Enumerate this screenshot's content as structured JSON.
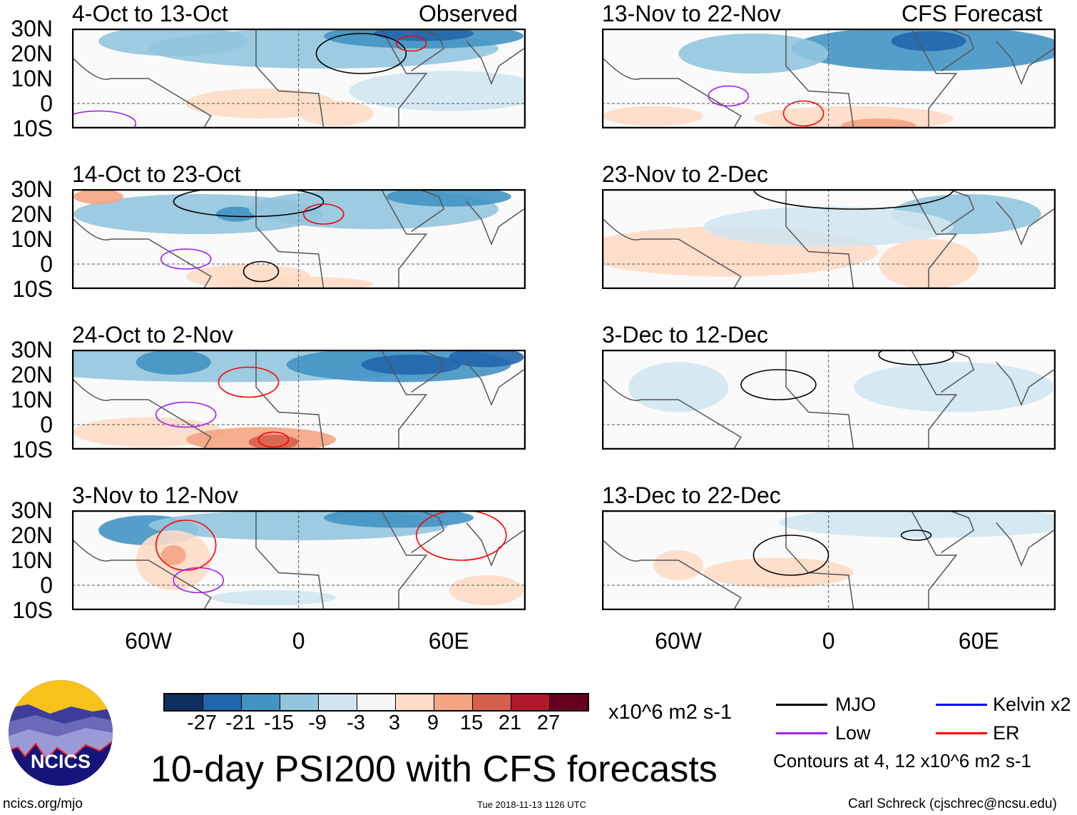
{
  "chart_data": {
    "type": "heatmap",
    "title": "10-day PSI200 with CFS forecasts",
    "units": "x10^6 m2 s-1",
    "lat_ticks": [
      "30N",
      "20N",
      "10N",
      "0",
      "10S"
    ],
    "lon_ticks": [
      "60W",
      "0",
      "60E"
    ],
    "lat_range": [
      -10,
      30
    ],
    "lon_range": [
      -90,
      90
    ],
    "column_headers": {
      "left": "Observed",
      "right": "CFS Forecast"
    },
    "panels": [
      {
        "label": "4-Oct to 13-Oct",
        "type": "Observed"
      },
      {
        "label": "14-Oct to 23-Oct",
        "type": "Observed"
      },
      {
        "label": "24-Oct to 2-Nov",
        "type": "Observed"
      },
      {
        "label": "3-Nov to 12-Nov",
        "type": "Observed"
      },
      {
        "label": "13-Nov to 22-Nov",
        "type": "CFS Forecast"
      },
      {
        "label": "23-Nov to 2-Dec",
        "type": "CFS Forecast"
      },
      {
        "label": "3-Dec to 12-Dec",
        "type": "CFS Forecast"
      },
      {
        "label": "13-Dec to 22-Dec",
        "type": "CFS Forecast"
      }
    ],
    "colorbar": {
      "labels": [
        "-27",
        "-21",
        "-15",
        "-9",
        "-3",
        "3",
        "9",
        "15",
        "21",
        "27"
      ],
      "colors": [
        "#0d2f5f",
        "#2166ac",
        "#4393c3",
        "#92c5de",
        "#d1e5f0",
        "#f7f7f7",
        "#fddbc7",
        "#f4a582",
        "#d6604d",
        "#b2182b",
        "#67001f"
      ]
    },
    "legend": [
      {
        "name": "MJO",
        "color": "#000000"
      },
      {
        "name": "Kelvin x2",
        "color": "#0000ff"
      },
      {
        "name": "Low",
        "color": "#a020f0"
      },
      {
        "name": "ER",
        "color": "#ff0000"
      }
    ],
    "contour_note": "Contours at 4, 12 x10^6 m2 s-1"
  },
  "logo_text": "NCICS",
  "footer": {
    "url": "ncics.org/mjo",
    "timestamp": "Tue 2018-11-13 1126 UTC",
    "author": "Carl Schreck (cjschrec@ncsu.edu)"
  }
}
